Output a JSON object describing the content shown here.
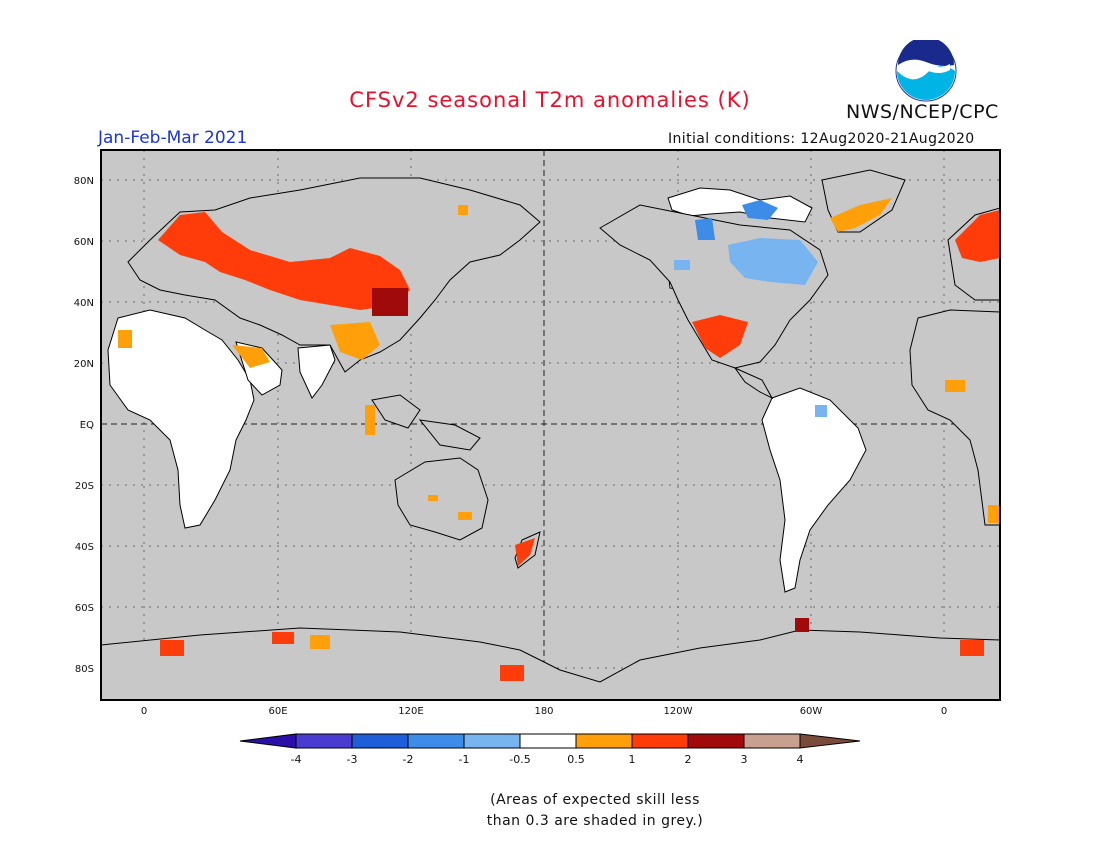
{
  "title": "CFSv2 seasonal T2m anomalies (K)",
  "period": "Jan-Feb-Mar 2021",
  "agency": "NWS/NCEP/CPC",
  "logo_text": "NOAA",
  "initial_conditions": "Initial conditions: 12Aug2020-21Aug2020",
  "lat_labels": [
    "80N",
    "60N",
    "40N",
    "20N",
    "EQ",
    "20S",
    "40S",
    "60S",
    "80S"
  ],
  "lon_labels": [
    "0",
    "60E",
    "120E",
    "180",
    "120W",
    "60W",
    "0"
  ],
  "colorbar": {
    "labels": [
      "-4",
      "-3",
      "-2",
      "-1",
      "-0.5",
      "0.5",
      "1",
      "2",
      "3",
      "4"
    ],
    "colors": [
      "#2a10a8",
      "#4a3cd0",
      "#1e5ed8",
      "#3c8ce8",
      "#78b4f0",
      "#ffffff",
      "#ffa00a",
      "#ff3c0a",
      "#a00a0a",
      "#c8a090",
      "#7a4a3a"
    ]
  },
  "note_lines": [
    "(Areas of expected skill less",
    "than 0.3 are shaded in grey.)"
  ],
  "colors": {
    "grey_mask": "#c8c8c8",
    "land_outline": "#000000"
  }
}
